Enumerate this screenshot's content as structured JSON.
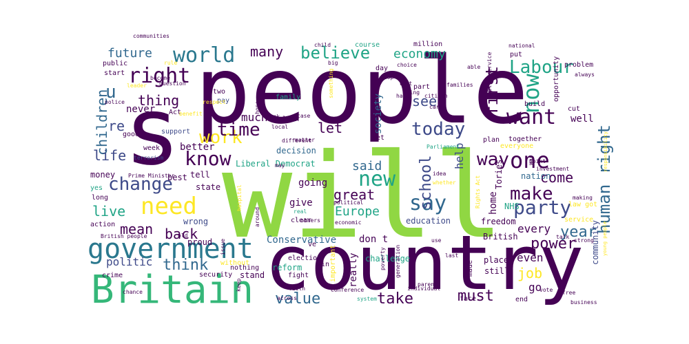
{
  "palette": {
    "dark_purple": "#440154",
    "indigo": "#482878",
    "blue": "#3e4a89",
    "slate": "#31688e",
    "teal": "#26828e",
    "green_teal": "#1f9e89",
    "green": "#35b779",
    "lime": "#6ece58",
    "yellow_green": "#b5de2b",
    "yellow": "#fde725"
  },
  "words": [
    {
      "text": "will",
      "color": "#90d743"
    },
    {
      "text": "people",
      "color": "#440154"
    },
    {
      "text": "country",
      "color": "#440154"
    },
    {
      "text": "s",
      "color": "#440154"
    },
    {
      "text": "Britain",
      "color": "#35b779"
    },
    {
      "text": "government",
      "color": "#2a788e"
    },
    {
      "text": "need",
      "color": "#fde725"
    },
    {
      "text": "world",
      "color": "#2a788e"
    },
    {
      "text": "right",
      "color": "#440154"
    },
    {
      "text": "know",
      "color": "#440154"
    },
    {
      "text": "work",
      "color": "#fde725"
    },
    {
      "text": "change",
      "color": "#3e4a89"
    },
    {
      "text": "time",
      "color": "#440154"
    },
    {
      "text": "new",
      "color": "#20a486"
    },
    {
      "text": "believe",
      "color": "#20a486"
    },
    {
      "text": "today",
      "color": "#3e4a89"
    },
    {
      "text": "want",
      "color": "#440154"
    },
    {
      "text": "one",
      "color": "#440154"
    },
    {
      "text": "now",
      "color": "#20a486"
    },
    {
      "text": "Labour",
      "color": "#20a486"
    },
    {
      "text": "party",
      "color": "#3e4a89"
    },
    {
      "text": "say",
      "color": "#31688e"
    },
    {
      "text": "make",
      "color": "#440154"
    },
    {
      "text": "way",
      "color": "#440154"
    },
    {
      "text": "human right",
      "color": "#31688e"
    },
    {
      "text": "first",
      "color": "#440154"
    },
    {
      "text": "school",
      "color": "#3e4a89"
    },
    {
      "text": "many",
      "color": "#440154"
    },
    {
      "text": "economy",
      "color": "#20a486"
    },
    {
      "text": "future",
      "color": "#31688e"
    },
    {
      "text": "thing",
      "color": "#440154"
    },
    {
      "text": "u",
      "color": "#31688e"
    },
    {
      "text": "children",
      "color": "#31688e"
    },
    {
      "text": "re",
      "color": "#3e4a89"
    },
    {
      "text": "life",
      "color": "#3e4a89"
    },
    {
      "text": "live",
      "color": "#20a486"
    },
    {
      "text": "mean",
      "color": "#440154"
    },
    {
      "text": "back",
      "color": "#440154"
    },
    {
      "text": "think",
      "color": "#31688e"
    },
    {
      "text": "politic",
      "color": "#3e4a89"
    },
    {
      "text": "value",
      "color": "#31688e"
    },
    {
      "text": "take",
      "color": "#440154"
    },
    {
      "text": "must",
      "color": "#440154"
    },
    {
      "text": "job",
      "color": "#fde725"
    },
    {
      "text": "power",
      "color": "#440154"
    },
    {
      "text": "year",
      "color": "#31688e"
    },
    {
      "text": "come",
      "color": "#440154"
    },
    {
      "text": "let",
      "color": "#440154"
    },
    {
      "text": "said",
      "color": "#31688e"
    },
    {
      "text": "much",
      "color": "#440154"
    },
    {
      "text": "great",
      "color": "#440154"
    },
    {
      "text": "Europe",
      "color": "#20a486"
    },
    {
      "text": "see",
      "color": "#3e4a89"
    },
    {
      "text": "help",
      "color": "#3e4a89"
    },
    {
      "text": "home",
      "color": "#440154"
    },
    {
      "text": "every",
      "color": "#440154"
    },
    {
      "text": "even",
      "color": "#440154"
    },
    {
      "text": "go",
      "color": "#440154"
    },
    {
      "text": "society",
      "color": "#31688e"
    },
    {
      "text": "going",
      "color": "#440154"
    },
    {
      "text": "give",
      "color": "#440154"
    },
    {
      "text": "Conservative",
      "color": "#31688e"
    },
    {
      "text": "don t",
      "color": "#440154"
    },
    {
      "text": "better",
      "color": "#440154"
    },
    {
      "text": "never",
      "color": "#440154"
    },
    {
      "text": "well",
      "color": "#440154"
    },
    {
      "text": "Liberal Democrat",
      "color": "#20a486"
    },
    {
      "text": "decision",
      "color": "#31688e"
    },
    {
      "text": "education",
      "color": "#3e4a89"
    },
    {
      "text": "British",
      "color": "#440154"
    },
    {
      "text": "freedom",
      "color": "#440154"
    },
    {
      "text": "NHS",
      "color": "#20a486"
    },
    {
      "text": "community",
      "color": "#3e4a89"
    },
    {
      "text": "Tories",
      "color": "#440154"
    },
    {
      "text": "nation",
      "color": "#31688e"
    },
    {
      "text": "challenge",
      "color": "#20a486"
    },
    {
      "text": "really",
      "color": "#440154"
    },
    {
      "text": "reform",
      "color": "#20a486"
    },
    {
      "text": "stand",
      "color": "#440154"
    },
    {
      "text": "still",
      "color": "#440154"
    },
    {
      "text": "place",
      "color": "#440154"
    },
    {
      "text": "made",
      "color": "#440154"
    },
    {
      "text": "face",
      "color": "#440154"
    },
    {
      "text": "end",
      "color": "#440154"
    },
    {
      "text": "state",
      "color": "#440154"
    },
    {
      "text": "wrong",
      "color": "#3e4a89"
    },
    {
      "text": "proud",
      "color": "#440154"
    },
    {
      "text": "best",
      "color": "#440154"
    },
    {
      "text": "tell",
      "color": "#440154"
    },
    {
      "text": "money",
      "color": "#440154"
    },
    {
      "text": "yes",
      "color": "#20a486"
    },
    {
      "text": "long",
      "color": "#440154"
    },
    {
      "text": "action",
      "color": "#440154"
    },
    {
      "text": "support",
      "color": "#3e4a89"
    },
    {
      "text": "good",
      "color": "#440154"
    },
    {
      "text": "week",
      "color": "#440154"
    },
    {
      "text": "Act",
      "color": "#440154"
    },
    {
      "text": "pay",
      "color": "#3e4a89"
    },
    {
      "text": "two",
      "color": "#440154"
    },
    {
      "text": "start",
      "color": "#440154"
    },
    {
      "text": "public",
      "color": "#440154"
    },
    {
      "text": "police",
      "color": "#440154"
    },
    {
      "text": "communities",
      "color": "#440154"
    },
    {
      "text": "family",
      "color": "#20a486"
    },
    {
      "text": "part",
      "color": "#440154"
    },
    {
      "text": "day",
      "color": "#440154"
    },
    {
      "text": "course",
      "color": "#20a486"
    },
    {
      "text": "million",
      "color": "#440154"
    },
    {
      "text": "put",
      "color": "#440154"
    },
    {
      "text": "problem",
      "color": "#440154"
    },
    {
      "text": "opportunity",
      "color": "#440154"
    },
    {
      "text": "build",
      "color": "#440154"
    },
    {
      "text": "cut",
      "color": "#440154"
    },
    {
      "text": "together",
      "color": "#440154"
    },
    {
      "text": "plan",
      "color": "#440154"
    },
    {
      "text": "everyone",
      "color": "#fde725"
    },
    {
      "text": "service",
      "color": "#fde725"
    },
    {
      "text": "law got",
      "color": "#fde725"
    },
    {
      "text": "public service",
      "color": "#440154"
    },
    {
      "text": "families",
      "color": "#440154"
    },
    {
      "text": "something",
      "color": "#fde725"
    },
    {
      "text": "set",
      "color": "#440154"
    },
    {
      "text": "look",
      "color": "#440154"
    },
    {
      "text": "different",
      "color": "#440154"
    },
    {
      "text": "local",
      "color": "#440154"
    },
    {
      "text": "Parliament",
      "color": "#20a486"
    },
    {
      "text": "idea",
      "color": "#440154"
    },
    {
      "text": "whether",
      "color": "#fde725"
    },
    {
      "text": "Prime Minister",
      "color": "#440154"
    },
    {
      "text": "terrorism",
      "color": "#3e4a89"
    },
    {
      "text": "ve",
      "color": "#440154"
    },
    {
      "text": "political",
      "color": "#440154"
    },
    {
      "text": "economic",
      "color": "#440154"
    },
    {
      "text": "others",
      "color": "#440154"
    },
    {
      "text": "real",
      "color": "#20a486"
    },
    {
      "text": "clear",
      "color": "#440154"
    },
    {
      "text": "around",
      "color": "#440154"
    },
    {
      "text": "British people",
      "color": "#440154"
    },
    {
      "text": "crime",
      "color": "#440154"
    },
    {
      "text": "security",
      "color": "#440154"
    },
    {
      "text": "without",
      "color": "#fde725"
    },
    {
      "text": "nothing",
      "color": "#440154"
    },
    {
      "text": "election",
      "color": "#440154"
    },
    {
      "text": "win",
      "color": "#440154"
    },
    {
      "text": "fight",
      "color": "#440154"
    },
    {
      "text": "faith",
      "color": "#440154"
    },
    {
      "text": "across",
      "color": "#440154"
    },
    {
      "text": "conference",
      "color": "#440154"
    },
    {
      "text": "system",
      "color": "#20a486"
    },
    {
      "text": "individual",
      "color": "#440154"
    },
    {
      "text": "generation",
      "color": "#440154"
    },
    {
      "text": "poverty",
      "color": "#440154"
    },
    {
      "text": "important",
      "color": "#fde725"
    },
    {
      "text": "last",
      "color": "#440154"
    },
    {
      "text": "use",
      "color": "#440154"
    },
    {
      "text": "vote",
      "color": "#440154"
    },
    {
      "text": "free",
      "color": "#440154"
    },
    {
      "text": "business",
      "color": "#440154"
    },
    {
      "text": "strong",
      "color": "#440154"
    },
    {
      "text": "young people",
      "color": "#fde725"
    },
    {
      "text": "talk",
      "color": "#440154"
    },
    {
      "text": "making",
      "color": "#440154"
    },
    {
      "text": "chance",
      "color": "#440154"
    },
    {
      "text": "keep",
      "color": "#440154"
    },
    {
      "text": "issue",
      "color": "#440154"
    },
    {
      "text": "old",
      "color": "#440154"
    },
    {
      "text": "hope",
      "color": "#440154"
    },
    {
      "text": "thank",
      "color": "#440154"
    },
    {
      "text": "case",
      "color": "#440154"
    },
    {
      "text": "matter",
      "color": "#440154"
    },
    {
      "text": "may",
      "color": "#440154"
    },
    {
      "text": "parent",
      "color": "#440154"
    },
    {
      "text": "big",
      "color": "#440154"
    },
    {
      "text": "war",
      "color": "#440154"
    },
    {
      "text": "point",
      "color": "#440154"
    },
    {
      "text": "investment",
      "color": "#440154"
    },
    {
      "text": "responsibility",
      "color": "#fde725"
    },
    {
      "text": "hospital",
      "color": "#fde725"
    },
    {
      "text": "Rights Act",
      "color": "#fde725"
    },
    {
      "text": "respect",
      "color": "#fde725"
    },
    {
      "text": "rule",
      "color": "#fde725"
    },
    {
      "text": "become",
      "color": "#440154"
    },
    {
      "text": "question",
      "color": "#440154"
    },
    {
      "text": "choice",
      "color": "#440154"
    },
    {
      "text": "child",
      "color": "#440154"
    },
    {
      "text": "stop",
      "color": "#440154"
    },
    {
      "text": "bring",
      "color": "#440154"
    },
    {
      "text": "hard",
      "color": "#440154"
    },
    {
      "text": "left",
      "color": "#440154"
    },
    {
      "text": "able",
      "color": "#440154"
    },
    {
      "text": "citizen",
      "color": "#440154"
    },
    {
      "text": "care",
      "color": "#440154"
    },
    {
      "text": "national",
      "color": "#440154"
    },
    {
      "text": "always",
      "color": "#440154"
    },
    {
      "text": "benefit",
      "color": "#fde725"
    },
    {
      "text": "leader",
      "color": "#fde725"
    },
    {
      "text": "policy",
      "color": "#440154"
    }
  ]
}
